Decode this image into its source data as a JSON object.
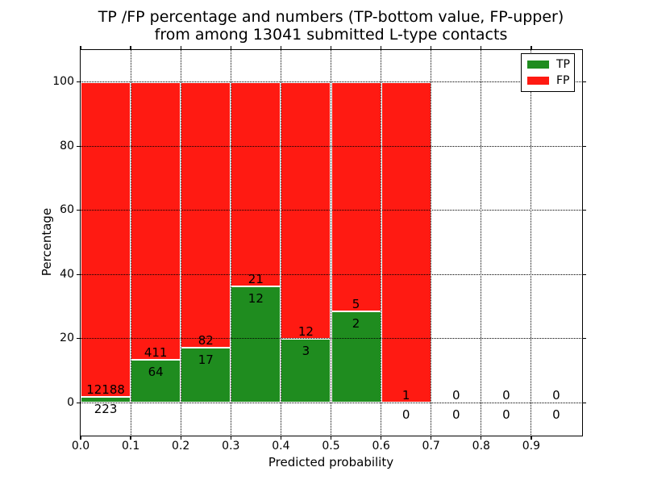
{
  "chart_data": {
    "type": "bar",
    "variant": "stacked-percentage-histogram",
    "title_line1": "TP /FP percentage and numbers (TP-bottom value, FP-upper)",
    "title_line2": "from among 13041 submitted L-type contacts",
    "xlabel": "Predicted probability",
    "ylabel": "Percentage",
    "xlim": [
      0.0,
      1.0
    ],
    "ylim": [
      -10,
      110
    ],
    "grid": true,
    "xtick_labels": [
      "0.0",
      "0.1",
      "0.2",
      "0.3",
      "0.4",
      "0.5",
      "0.6",
      "0.7",
      "0.8",
      "0.9"
    ],
    "ytick_values": [
      0,
      20,
      40,
      60,
      80,
      100
    ],
    "total_contacts": 13041,
    "tp_color": "#1f8c1f",
    "fp_color": "#ff1a12",
    "bar_edge_color": "#ffffff",
    "grid_color": "#000000",
    "legend": {
      "position": "upper right",
      "entries": [
        {
          "label": "TP",
          "color": "#1f8c1f"
        },
        {
          "label": "FP",
          "color": "#ff1a12"
        }
      ]
    },
    "bins": [
      {
        "range": [
          0.0,
          0.1
        ],
        "tp": 223,
        "fp": 12188
      },
      {
        "range": [
          0.1,
          0.2
        ],
        "tp": 64,
        "fp": 411
      },
      {
        "range": [
          0.2,
          0.3
        ],
        "tp": 17,
        "fp": 82
      },
      {
        "range": [
          0.3,
          0.4
        ],
        "tp": 12,
        "fp": 21
      },
      {
        "range": [
          0.4,
          0.5
        ],
        "tp": 3,
        "fp": 12
      },
      {
        "range": [
          0.5,
          0.6
        ],
        "tp": 2,
        "fp": 5
      },
      {
        "range": [
          0.6,
          0.7
        ],
        "tp": 0,
        "fp": 1
      },
      {
        "range": [
          0.7,
          0.8
        ],
        "tp": 0,
        "fp": 0
      },
      {
        "range": [
          0.8,
          0.9
        ],
        "tp": 0,
        "fp": 0
      },
      {
        "range": [
          0.9,
          1.0
        ],
        "tp": 0,
        "fp": 0
      }
    ]
  }
}
